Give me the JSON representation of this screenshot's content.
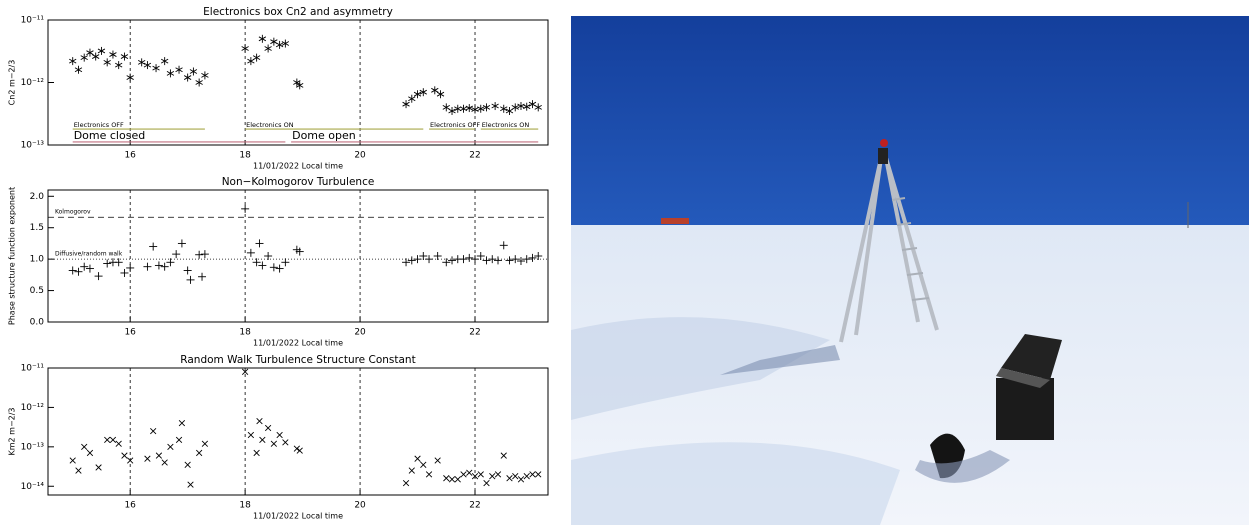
{
  "chart_data": [
    {
      "type": "scatter",
      "title": "Electronics box Cn2 and asymmetry",
      "xlabel": "11/01/2022 Local time",
      "ylabel": "Cn2 m−2/3",
      "marker": "asterisk",
      "color": "#000000",
      "log_y": true,
      "grid": "x",
      "xlim": [
        14.57,
        23.27
      ],
      "xticks": [
        16,
        18,
        20,
        22
      ],
      "ylim": [
        1e-13,
        1e-11
      ],
      "yticks": [
        {
          "value": 1e-13,
          "label": "10⁻¹³"
        },
        {
          "value": 1e-12,
          "label": "10⁻¹²"
        },
        {
          "value": 1e-11,
          "label": "10⁻¹¹"
        }
      ],
      "x": [
        15.0,
        15.1,
        15.2,
        15.3,
        15.4,
        15.5,
        15.6,
        15.7,
        15.8,
        15.9,
        16.0,
        16.2,
        16.3,
        16.45,
        16.6,
        16.7,
        16.85,
        17.0,
        17.1,
        17.2,
        17.3,
        18.0,
        18.1,
        18.2,
        18.3,
        18.4,
        18.5,
        18.6,
        18.7,
        18.9,
        18.95,
        20.8,
        20.9,
        21.0,
        21.1,
        21.3,
        21.4,
        21.5,
        21.6,
        21.7,
        21.8,
        21.9,
        22.0,
        22.1,
        22.2,
        22.35,
        22.5,
        22.6,
        22.7,
        22.8,
        22.9,
        23.0,
        23.1
      ],
      "values": [
        2.2e-12,
        1.6e-12,
        2.5e-12,
        3e-12,
        2.6e-12,
        3.2e-12,
        2.1e-12,
        2.8e-12,
        1.9e-12,
        2.6e-12,
        1.2e-12,
        2.1e-12,
        1.9e-12,
        1.7e-12,
        2.2e-12,
        1.4e-12,
        1.6e-12,
        1.2e-12,
        1.5e-12,
        1e-12,
        1.3e-12,
        3.5e-12,
        2.2e-12,
        2.5e-12,
        5e-12,
        3.5e-12,
        4.5e-12,
        4e-12,
        4.2e-12,
        1e-12,
        9e-13,
        4.5e-13,
        5.5e-13,
        6.5e-13,
        7e-13,
        7.5e-13,
        6.5e-13,
        4e-13,
        3.5e-13,
        3.8e-13,
        3.8e-13,
        3.9e-13,
        3.7e-13,
        3.8e-13,
        4e-13,
        4.2e-13,
        3.8e-13,
        3.5e-13,
        4e-13,
        4.2e-13,
        4.1e-13,
        4.5e-13,
        4e-13
      ],
      "annotations": [
        {
          "text": "Electronics OFF",
          "x": [
            15.0,
            17.3
          ],
          "y": 1.8e-13,
          "color": "#a8a84a",
          "size": "small"
        },
        {
          "text": "Electronics ON",
          "x": [
            18.0,
            21.1
          ],
          "y": 1.8e-13,
          "color": "#a8a84a",
          "size": "small"
        },
        {
          "text": "Electronics OFF",
          "x": [
            21.2,
            22.0
          ],
          "y": 1.8e-13,
          "color": "#a8a84a",
          "size": "small"
        },
        {
          "text": "Electronics ON",
          "x": [
            22.1,
            23.1
          ],
          "y": 1.8e-13,
          "color": "#a8a84a",
          "size": "small"
        },
        {
          "text": "Dome closed",
          "x": [
            15.0,
            18.7
          ],
          "y": 1.12e-13,
          "color": "#c07080",
          "size": "large"
        },
        {
          "text": "Dome open",
          "x": [
            18.8,
            23.1
          ],
          "y": 1.12e-13,
          "color": "#c07080",
          "size": "large"
        }
      ]
    },
    {
      "type": "scatter",
      "title": "Non−Kolmogorov Turbulence",
      "xlabel": "11/01/2022 Local time",
      "ylabel": "Phase structure function exponent",
      "marker": "plus",
      "color": "#000000",
      "log_y": false,
      "grid": "x",
      "xlim": [
        14.57,
        23.27
      ],
      "xticks": [
        16,
        18,
        20,
        22
      ],
      "ylim": [
        0,
        2.1
      ],
      "yticks": [
        {
          "value": 0,
          "label": "0.0"
        },
        {
          "value": 0.5,
          "label": "0.5"
        },
        {
          "value": 1,
          "label": "1.0"
        },
        {
          "value": 1.5,
          "label": "1.5"
        },
        {
          "value": 2,
          "label": "2.0"
        }
      ],
      "reference_lines": [
        {
          "value": 1.667,
          "label": "Kolmogorov",
          "style": "dashed"
        },
        {
          "value": 1.0,
          "label": "Diffusive/random walk",
          "style": "dotted"
        }
      ],
      "x": [
        15.0,
        15.1,
        15.2,
        15.3,
        15.45,
        15.6,
        15.7,
        15.8,
        15.9,
        16.0,
        16.3,
        16.4,
        16.5,
        16.6,
        16.7,
        16.8,
        16.9,
        17.0,
        17.05,
        17.2,
        17.25,
        17.3,
        18.0,
        18.1,
        18.2,
        18.25,
        18.3,
        18.4,
        18.5,
        18.6,
        18.7,
        18.9,
        18.95,
        20.8,
        20.9,
        21.0,
        21.1,
        21.2,
        21.35,
        21.5,
        21.6,
        21.7,
        21.8,
        21.9,
        22.0,
        22.1,
        22.2,
        22.3,
        22.4,
        22.5,
        22.6,
        22.7,
        22.8,
        22.9,
        23.0,
        23.1
      ],
      "values": [
        0.82,
        0.8,
        0.88,
        0.85,
        0.73,
        0.93,
        0.95,
        0.95,
        0.78,
        0.86,
        0.88,
        1.2,
        0.9,
        0.88,
        0.95,
        1.08,
        1.25,
        0.82,
        0.67,
        1.07,
        0.72,
        1.08,
        1.8,
        1.1,
        0.95,
        1.25,
        0.9,
        1.05,
        0.87,
        0.85,
        0.95,
        1.15,
        1.12,
        0.95,
        0.98,
        1.0,
        1.05,
        1.0,
        1.05,
        0.95,
        0.98,
        1.0,
        1.0,
        1.02,
        1.0,
        1.05,
        0.98,
        1.0,
        0.98,
        1.22,
        0.98,
        1.0,
        0.97,
        1.0,
        1.02,
        1.05
      ]
    },
    {
      "type": "scatter",
      "title": "Random Walk Turbulence Structure Constant",
      "xlabel": "11/01/2022 Local time",
      "ylabel": "Km2 m−2/3",
      "marker": "x",
      "color": "#000000",
      "log_y": true,
      "grid": "x",
      "xlim": [
        14.57,
        23.27
      ],
      "xticks": [
        16,
        18,
        20,
        22
      ],
      "ylim": [
        6e-15,
        1e-11
      ],
      "yticks": [
        {
          "value": 1e-14,
          "label": "10⁻¹⁴"
        },
        {
          "value": 1e-13,
          "label": "10⁻¹³"
        },
        {
          "value": 1e-12,
          "label": "10⁻¹²"
        },
        {
          "value": 1e-11,
          "label": "10⁻¹¹"
        }
      ],
      "x": [
        15.0,
        15.1,
        15.2,
        15.3,
        15.45,
        15.6,
        15.7,
        15.8,
        15.9,
        16.0,
        16.3,
        16.4,
        16.5,
        16.6,
        16.7,
        16.85,
        16.9,
        17.0,
        17.05,
        17.2,
        17.3,
        18.0,
        18.1,
        18.2,
        18.25,
        18.3,
        18.4,
        18.5,
        18.6,
        18.7,
        18.9,
        18.95,
        20.8,
        20.9,
        21.0,
        21.1,
        21.2,
        21.35,
        21.5,
        21.6,
        21.7,
        21.8,
        21.9,
        22.0,
        22.1,
        22.2,
        22.3,
        22.4,
        22.5,
        22.6,
        22.7,
        22.8,
        22.9,
        23.0,
        23.1
      ],
      "values": [
        4.5e-14,
        2.5e-14,
        1e-13,
        7e-14,
        3e-14,
        1.5e-13,
        1.5e-13,
        1.2e-13,
        6e-14,
        4.5e-14,
        5e-14,
        2.5e-13,
        6e-14,
        4e-14,
        1e-13,
        1.5e-13,
        4e-13,
        3.5e-14,
        1.1e-14,
        7e-14,
        1.2e-13,
        8e-12,
        2e-13,
        7e-14,
        4.5e-13,
        1.5e-13,
        3e-13,
        1.2e-13,
        2e-13,
        1.3e-13,
        9e-14,
        8e-14,
        1.2e-14,
        2.5e-14,
        5e-14,
        3.5e-14,
        2e-14,
        4.5e-14,
        1.6e-14,
        1.5e-14,
        1.5e-14,
        2e-14,
        2.2e-14,
        1.8e-14,
        2e-14,
        1.2e-14,
        1.8e-14,
        2e-14,
        6e-14,
        1.6e-14,
        1.8e-14,
        1.5e-14,
        1.8e-14,
        2e-14,
        2e-14
      ]
    }
  ]
}
